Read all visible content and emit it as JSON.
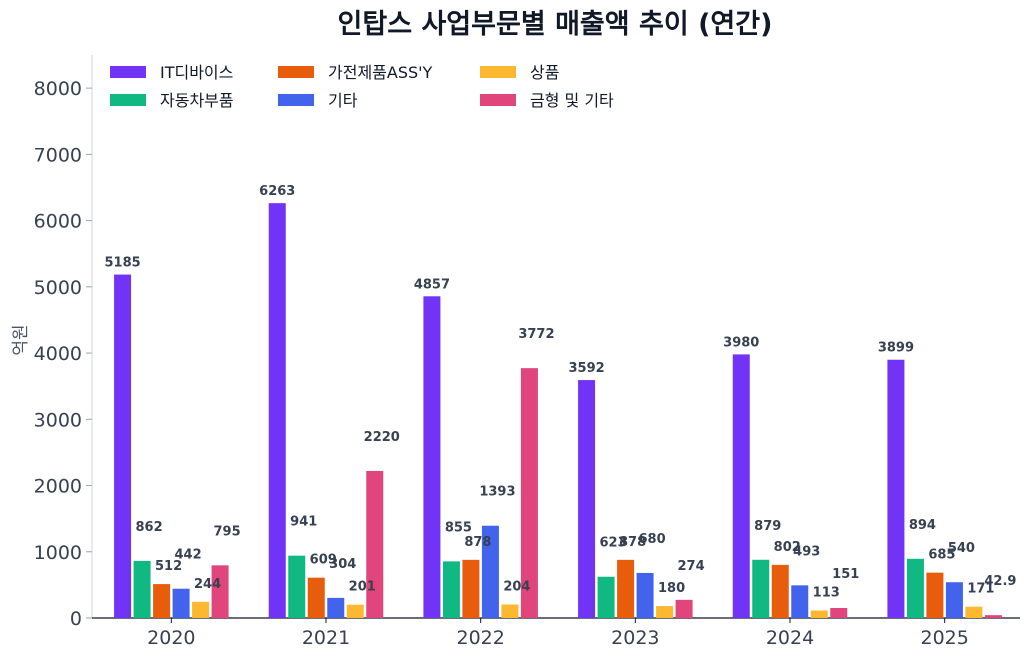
{
  "chart_data": {
    "type": "bar",
    "title": "인탑스 사업부문별 매출액 추이 (연간)",
    "ylabel": "억원",
    "xlabel": "",
    "ylim": [
      0,
      8500
    ],
    "yticks": [
      0,
      1000,
      2000,
      3000,
      4000,
      5000,
      6000,
      7000,
      8000
    ],
    "categories": [
      "2020",
      "2021",
      "2022",
      "2023",
      "2024",
      "2025"
    ],
    "legend_position": "top-left",
    "grid": false,
    "series": [
      {
        "name": "IT디바이스",
        "color": "#7133f5",
        "values": [
          5185,
          6263,
          4857,
          3592,
          3980,
          3899
        ],
        "labels": [
          "5185",
          "6263",
          "4857",
          "3592",
          "3980",
          "3899"
        ]
      },
      {
        "name": "자동차부품",
        "color": "#10b981",
        "values": [
          862,
          941,
          855,
          623,
          879,
          894
        ],
        "labels": [
          "862",
          "941",
          "855",
          "623",
          "879",
          "894"
        ]
      },
      {
        "name": "가전제품ASS'Y",
        "color": "#e85d0c",
        "values": [
          512,
          609,
          878,
          878,
          802,
          685
        ],
        "labels": [
          "512",
          "609",
          "878",
          "878",
          "802",
          "685"
        ]
      },
      {
        "name": "기타",
        "color": "#4263eb",
        "values": [
          442,
          304,
          1393,
          680,
          493,
          540
        ],
        "labels": [
          "442",
          "304",
          "1393",
          "680",
          "493",
          "540"
        ]
      },
      {
        "name": "상품",
        "color": "#fbb830",
        "values": [
          244,
          201,
          204,
          180,
          113,
          171
        ],
        "labels": [
          "244",
          "201",
          "204",
          "180",
          "113",
          "171"
        ]
      },
      {
        "name": "금형 및 기타",
        "color": "#e0457b",
        "values": [
          795,
          2220,
          3772,
          274,
          151,
          42.9
        ],
        "labels": [
          "795",
          "2220",
          "3772",
          "274",
          "151",
          "42.9"
        ]
      }
    ]
  }
}
